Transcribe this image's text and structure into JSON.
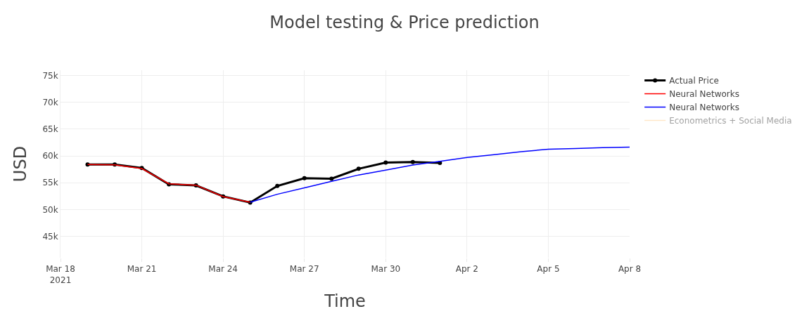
{
  "chart_data": {
    "type": "line",
    "title": "Model testing & Price prediction",
    "xlabel": "Time",
    "ylabel": "USD",
    "series": [
      {
        "name": "Actual Price",
        "color": "#000000",
        "marker": "circle",
        "x": [
          "2021-03-19",
          "2021-03-20",
          "2021-03-21",
          "2021-03-22",
          "2021-03-23",
          "2021-03-24",
          "2021-03-25",
          "2021-03-26",
          "2021-03-27",
          "2021-03-28",
          "2021-03-29",
          "2021-03-30",
          "2021-03-31",
          "2021-04-01"
        ],
        "values": [
          58400,
          58400,
          57750,
          54700,
          54500,
          52450,
          51300,
          54400,
          55850,
          55750,
          57600,
          58750,
          58850,
          58700
        ]
      },
      {
        "name": "Neural Networks",
        "color": "#ff0000",
        "x": [
          "2021-03-19",
          "2021-03-20",
          "2021-03-21",
          "2021-03-22",
          "2021-03-23",
          "2021-03-24",
          "2021-03-25"
        ],
        "values": [
          58400,
          58350,
          57650,
          54800,
          54550,
          52400,
          51350
        ]
      },
      {
        "name": "Neural Networks",
        "color": "#0000ff",
        "x": [
          "2021-03-25",
          "2021-03-26",
          "2021-03-27",
          "2021-03-28",
          "2021-03-29",
          "2021-03-30",
          "2021-03-31",
          "2021-04-01",
          "2021-04-02",
          "2021-04-03",
          "2021-04-04",
          "2021-04-05",
          "2021-04-06",
          "2021-04-07",
          "2021-04-08"
        ],
        "values": [
          51350,
          52850,
          54050,
          55250,
          56450,
          57350,
          58300,
          59000,
          59700,
          60250,
          60800,
          61250,
          61400,
          61550,
          61650
        ]
      },
      {
        "name": "Econometrics + Social Media",
        "color": "#ffd090"
      }
    ],
    "xlim": [
      "2021-03-18",
      "2021-04-08"
    ],
    "xticks": [
      {
        "value": "2021-03-18",
        "label": "Mar 18\n2021"
      },
      {
        "value": "2021-03-21",
        "label": "Mar 21"
      },
      {
        "value": "2021-03-24",
        "label": "Mar 24"
      },
      {
        "value": "2021-03-27",
        "label": "Mar 27"
      },
      {
        "value": "2021-03-30",
        "label": "Mar 30"
      },
      {
        "value": "2021-04-02",
        "label": "Apr 2"
      },
      {
        "value": "2021-04-05",
        "label": "Apr 5"
      },
      {
        "value": "2021-04-08",
        "label": "Apr 8"
      }
    ],
    "ylim": [
      41000,
      76000
    ],
    "yticks": [
      {
        "value": 45000,
        "label": "45k"
      },
      {
        "value": 50000,
        "label": "50k"
      },
      {
        "value": 55000,
        "label": "55k"
      },
      {
        "value": 60000,
        "label": "60k"
      },
      {
        "value": 65000,
        "label": "65k"
      },
      {
        "value": 70000,
        "label": "70k"
      },
      {
        "value": 75000,
        "label": "75k"
      }
    ],
    "grid": true,
    "legend": "top right",
    "line_style": "solid"
  }
}
